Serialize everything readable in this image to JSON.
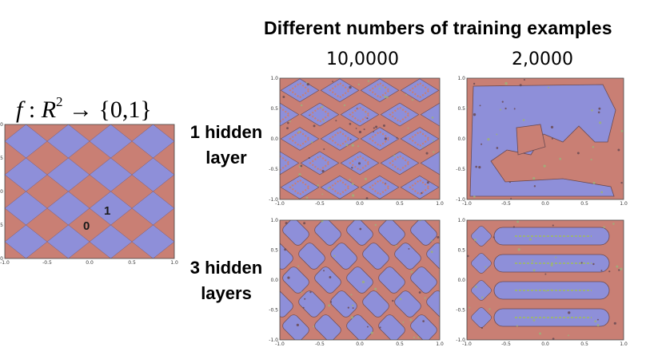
{
  "header": {
    "title": "Different numbers of training examples",
    "columns": [
      "10,0000",
      "2,0000"
    ]
  },
  "target": {
    "formula_f": "f",
    "formula_colon": " : ",
    "formula_R": "R",
    "formula_exp": "2",
    "formula_arrow": " → ",
    "formula_set": "{0,1}",
    "label_zero": "0",
    "label_one": "1"
  },
  "rows": [
    "1 hidden\nlayer",
    "3 hidden\nlayers"
  ],
  "row_lines": {
    "r1a": "1 hidden",
    "r1b": "layer",
    "r2a": "3 hidden",
    "r2b": "layers"
  },
  "axis_ticks": {
    "x": [
      "-1.0",
      "-0.5",
      "0.0",
      "0.5",
      "1.0"
    ],
    "y": [
      "1.0",
      "0.5",
      "0.0",
      "-0.5",
      "-1.0"
    ]
  },
  "colors": {
    "class_red": "#c97f74",
    "class_blue": "#8e8fd9",
    "boundary": "#6a4a52",
    "noise": "#9cb27a"
  }
}
